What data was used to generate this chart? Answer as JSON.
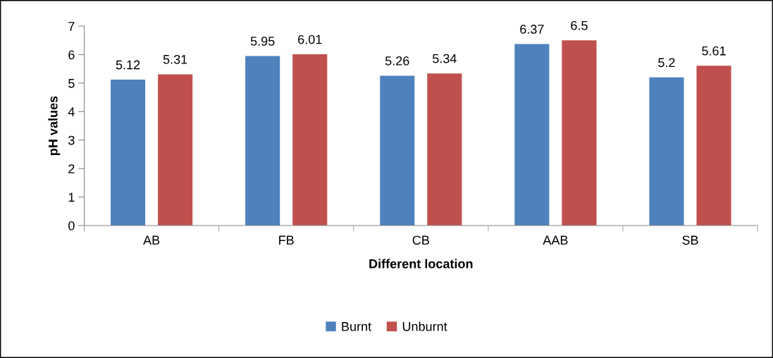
{
  "chart_data": {
    "type": "bar",
    "xlabel": "Different location",
    "ylabel": "pH values",
    "categories": [
      "AB",
      "FB",
      "CB",
      "AAB",
      "SB"
    ],
    "series": [
      {
        "name": "Burnt",
        "color": "#4f81bd",
        "values": [
          5.12,
          5.95,
          5.26,
          6.37,
          5.2
        ]
      },
      {
        "name": "Unburnt",
        "color": "#c0504d",
        "values": [
          5.31,
          6.01,
          5.34,
          6.5,
          5.61
        ]
      }
    ],
    "ylim": [
      0,
      7
    ],
    "yticks": [
      0,
      1,
      2,
      3,
      4,
      5,
      6,
      7
    ],
    "data_labels": true,
    "grid": false,
    "legend": "bottom"
  }
}
